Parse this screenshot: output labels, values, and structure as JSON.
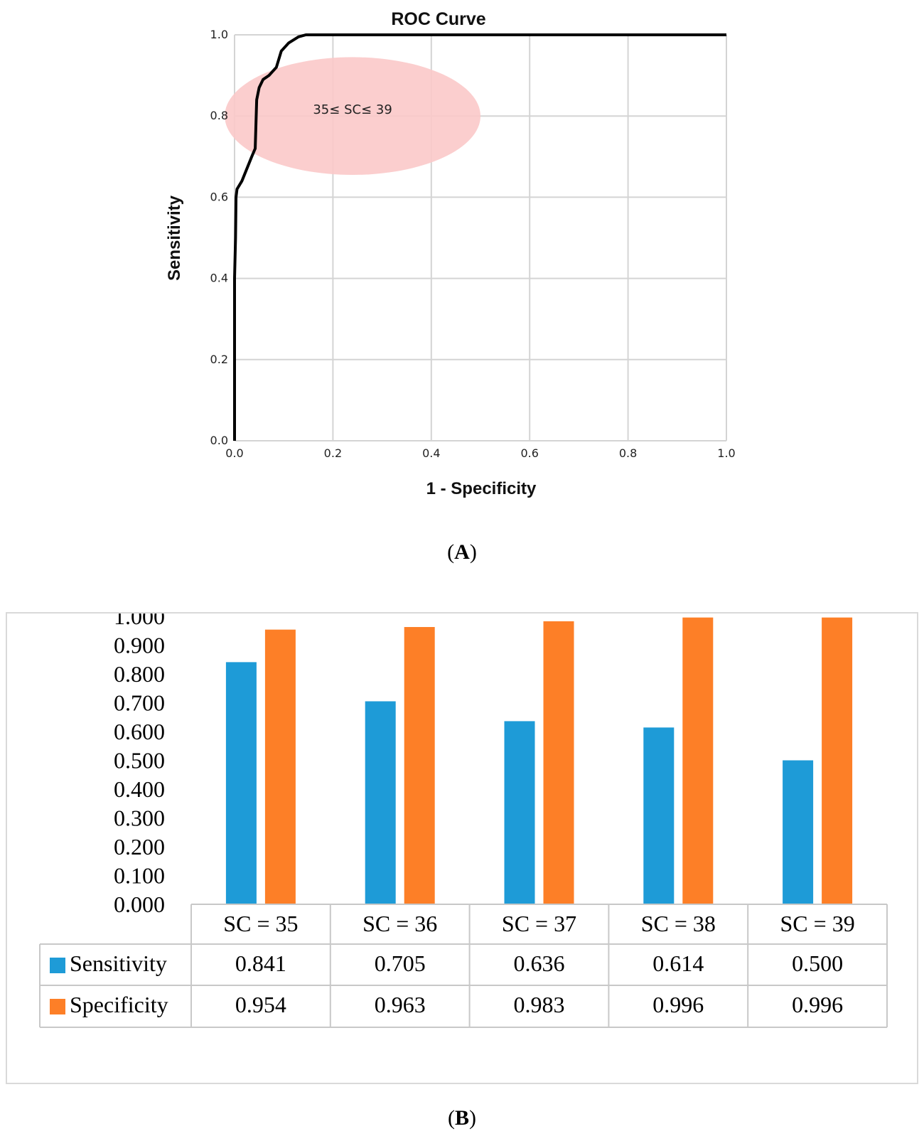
{
  "chart_data": [
    {
      "panel": "A",
      "type": "line",
      "title": "ROC Curve",
      "xlabel": "1 - Specificity",
      "ylabel": "Sensitivity",
      "xlim": [
        0,
        1
      ],
      "ylim": [
        0,
        1
      ],
      "grid": true,
      "xticks": [
        "0.0",
        "0.2",
        "0.4",
        "0.6",
        "0.8",
        "1.0"
      ],
      "yticks": [
        "0.0",
        "0.2",
        "0.4",
        "0.6",
        "0.8",
        "1.0"
      ],
      "series": [
        {
          "name": "ROC",
          "x": [
            0.0,
            0.0,
            0.002,
            0.003,
            0.005,
            0.015,
            0.025,
            0.035,
            0.042,
            0.045,
            0.05,
            0.058,
            0.07,
            0.085,
            0.095,
            0.11,
            0.13,
            0.145,
            0.2,
            0.5,
            1.0
          ],
          "y": [
            0.0,
            0.4,
            0.5,
            0.6,
            0.62,
            0.64,
            0.67,
            0.7,
            0.72,
            0.84,
            0.87,
            0.89,
            0.9,
            0.92,
            0.96,
            0.98,
            0.995,
            1.0,
            1.0,
            1.0,
            1.0
          ]
        }
      ],
      "annotation": {
        "text": "35≤ SC≤ 39",
        "center": [
          0.24,
          0.8
        ],
        "radius": [
          0.26,
          0.145
        ],
        "fill": "#fbc9c9"
      }
    },
    {
      "panel": "B",
      "type": "bar",
      "categories": [
        "SC = 35",
        "SC = 36",
        "SC = 37",
        "SC = 38",
        "SC = 39"
      ],
      "series": [
        {
          "name": "Sensitivity",
          "values": [
            0.841,
            0.705,
            0.636,
            0.614,
            0.5
          ],
          "color": "#1e9bd7"
        },
        {
          "name": "Specificity",
          "values": [
            0.954,
            0.963,
            0.983,
            0.996,
            0.996
          ],
          "color": "#fd7f27"
        }
      ],
      "ylim": [
        0,
        1
      ],
      "yticks": [
        "0.000",
        "0.100",
        "0.200",
        "0.300",
        "0.400",
        "0.500",
        "0.600",
        "0.700",
        "0.800",
        "0.900",
        "1.000"
      ],
      "table": {
        "rows": [
          {
            "name": "Sensitivity",
            "cells": [
              "0.841",
              "0.705",
              "0.636",
              "0.614",
              "0.500"
            ]
          },
          {
            "name": "Specificity",
            "cells": [
              "0.954",
              "0.963",
              "0.983",
              "0.996",
              "0.996"
            ]
          }
        ]
      }
    }
  ],
  "labels": {
    "panel_a": "A",
    "panel_b": "B"
  },
  "colors": {
    "curve": "#000000",
    "grid": "#d4d4d4",
    "table_border": "#c8c8c8"
  }
}
